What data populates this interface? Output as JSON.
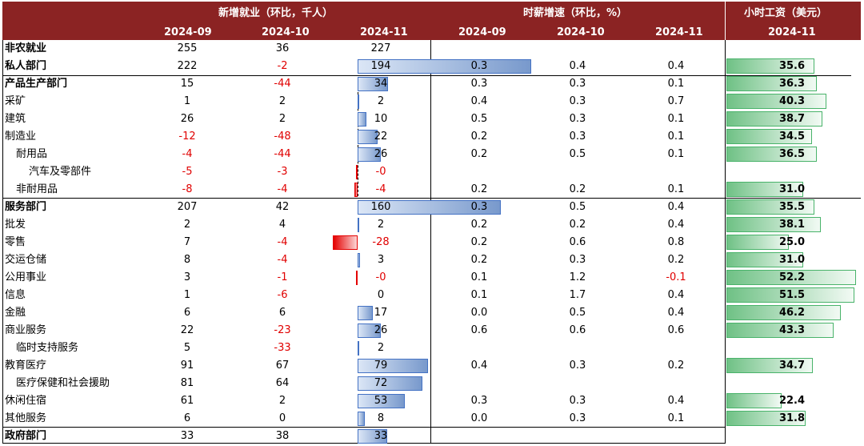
{
  "headers": {
    "jobs_group": "新增就业（环比，千人）",
    "wage_growth_group": "时薪增速（环比，%）",
    "hourly_wage_group": "小时工资（美元）",
    "job_dates": [
      "2024-09",
      "2024-10",
      "2024-11"
    ],
    "wage_growth_dates": [
      "2024-09",
      "2024-10",
      "2024-11"
    ],
    "hourly_wage_date": "2024-11"
  },
  "rows": [
    {
      "label": "非农就业",
      "indent": 0,
      "bold": true,
      "jobs": [
        "255",
        "36",
        "227"
      ],
      "wg": [
        "",
        "",
        ""
      ],
      "wage": ""
    },
    {
      "label": "私人部门",
      "indent": 0,
      "bold": true,
      "jobs": [
        "222",
        "-2",
        "194"
      ],
      "wg": [
        "0.3",
        "0.4",
        "0.4"
      ],
      "wage": "35.6"
    },
    {
      "label": "产品生产部门",
      "indent": 0,
      "bold": true,
      "jobs": [
        "15",
        "-44",
        "34"
      ],
      "wg": [
        "0.3",
        "0.3",
        "0.1"
      ],
      "wage": "36.3"
    },
    {
      "label": "采矿",
      "indent": 0,
      "bold": false,
      "jobs": [
        "1",
        "2",
        "2"
      ],
      "wg": [
        "0.4",
        "0.3",
        "0.7"
      ],
      "wage": "40.3"
    },
    {
      "label": "建筑",
      "indent": 0,
      "bold": false,
      "jobs": [
        "26",
        "2",
        "10"
      ],
      "wg": [
        "0.5",
        "0.3",
        "0.1"
      ],
      "wage": "38.7"
    },
    {
      "label": "制造业",
      "indent": 0,
      "bold": false,
      "jobs": [
        "-12",
        "-48",
        "22"
      ],
      "wg": [
        "0.2",
        "0.3",
        "0.1"
      ],
      "wage": "34.5"
    },
    {
      "label": "耐用品",
      "indent": 1,
      "bold": false,
      "jobs": [
        "-4",
        "-44",
        "26"
      ],
      "wg": [
        "0.2",
        "0.5",
        "0.1"
      ],
      "wage": "36.5"
    },
    {
      "label": "汽车及零部件",
      "indent": 2,
      "bold": false,
      "jobs": [
        "-5",
        "-3",
        "-0"
      ],
      "wg": [
        "",
        "",
        ""
      ],
      "wage": ""
    },
    {
      "label": "非耐用品",
      "indent": 1,
      "bold": false,
      "jobs": [
        "-8",
        "-4",
        "-4"
      ],
      "wg": [
        "0.2",
        "0.2",
        "0.1"
      ],
      "wage": "31.0"
    },
    {
      "label": "服务部门",
      "indent": 0,
      "bold": true,
      "jobs": [
        "207",
        "42",
        "160"
      ],
      "wg": [
        "0.3",
        "0.5",
        "0.4"
      ],
      "wage": "35.5"
    },
    {
      "label": "批发",
      "indent": 0,
      "bold": false,
      "jobs": [
        "2",
        "4",
        "2"
      ],
      "wg": [
        "0.2",
        "0.2",
        "0.4"
      ],
      "wage": "38.1"
    },
    {
      "label": "零售",
      "indent": 0,
      "bold": false,
      "jobs": [
        "7",
        "-4",
        "-28"
      ],
      "wg": [
        "0.2",
        "0.6",
        "0.8"
      ],
      "wage": "25.0"
    },
    {
      "label": "交运仓储",
      "indent": 0,
      "bold": false,
      "jobs": [
        "8",
        "-4",
        "3"
      ],
      "wg": [
        "0.2",
        "0.3",
        "0.2"
      ],
      "wage": "31.0"
    },
    {
      "label": "公用事业",
      "indent": 0,
      "bold": false,
      "jobs": [
        "3",
        "-1",
        "-0"
      ],
      "wg": [
        "0.1",
        "1.2",
        "-0.1"
      ],
      "wage": "52.2"
    },
    {
      "label": "信息",
      "indent": 0,
      "bold": false,
      "jobs": [
        "1",
        "-6",
        "0"
      ],
      "wg": [
        "0.1",
        "1.7",
        "0.4"
      ],
      "wage": "51.5"
    },
    {
      "label": "金融",
      "indent": 0,
      "bold": false,
      "jobs": [
        "6",
        "6",
        "17"
      ],
      "wg": [
        "0.0",
        "0.5",
        "0.4"
      ],
      "wage": "46.2"
    },
    {
      "label": "商业服务",
      "indent": 0,
      "bold": false,
      "jobs": [
        "22",
        "-23",
        "26"
      ],
      "wg": [
        "0.6",
        "0.6",
        "0.6"
      ],
      "wage": "43.3"
    },
    {
      "label": "临时支持服务",
      "indent": 1,
      "bold": false,
      "jobs": [
        "5",
        "-33",
        "2"
      ],
      "wg": [
        "",
        "",
        ""
      ],
      "wage": ""
    },
    {
      "label": "教育医疗",
      "indent": 0,
      "bold": false,
      "jobs": [
        "91",
        "67",
        "79"
      ],
      "wg": [
        "0.4",
        "0.3",
        "0.2"
      ],
      "wage": "34.7"
    },
    {
      "label": "医疗保健和社会援助",
      "indent": 1,
      "bold": false,
      "jobs": [
        "81",
        "64",
        "72"
      ],
      "wg": [
        "",
        "",
        ""
      ],
      "wage": ""
    },
    {
      "label": "休闲住宿",
      "indent": 0,
      "bold": false,
      "jobs": [
        "61",
        "2",
        "53"
      ],
      "wg": [
        "0.3",
        "0.3",
        "0.4"
      ],
      "wage": "22.4"
    },
    {
      "label": "其他服务",
      "indent": 0,
      "bold": false,
      "jobs": [
        "6",
        "0",
        "8"
      ],
      "wg": [
        "0.0",
        "0.3",
        "0.1"
      ],
      "wage": "31.8"
    },
    {
      "label": "政府部门",
      "indent": 0,
      "bold": true,
      "jobs": [
        "33",
        "38",
        "33"
      ],
      "wg": [
        "",
        "",
        ""
      ],
      "wage": ""
    }
  ]
}
